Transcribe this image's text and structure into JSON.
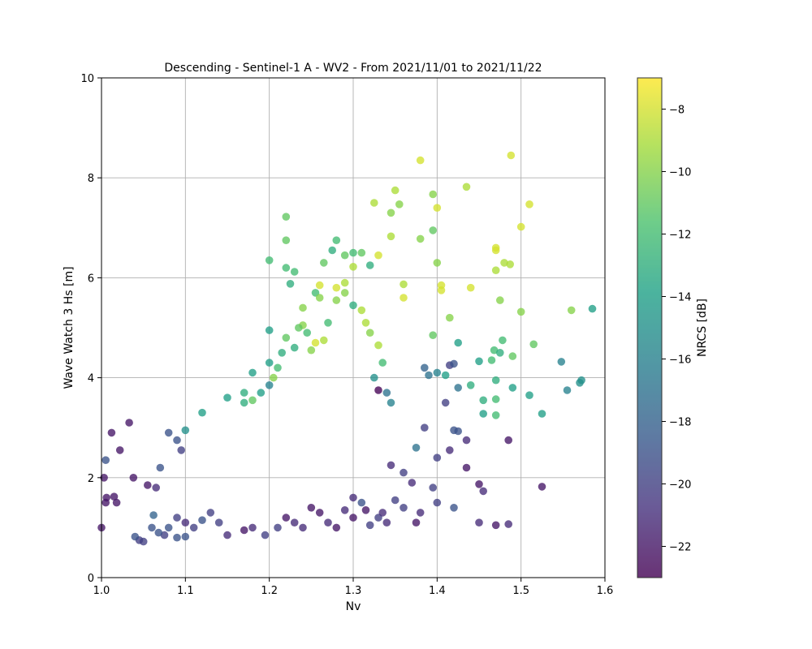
{
  "chart_data": {
    "type": "scatter",
    "title": "Descending - Sentinel-1 A - WV2 - From 2021/11/01 to 2021/11/22",
    "xlabel": "Nv",
    "ylabel": "Wave Watch 3 Hs [m]",
    "xlim": [
      1.0,
      1.6
    ],
    "ylim": [
      0,
      10
    ],
    "xticks": [
      "1.0",
      "1.1",
      "1.2",
      "1.3",
      "1.4",
      "1.5",
      "1.6"
    ],
    "yticks": [
      "0",
      "2",
      "4",
      "6",
      "8",
      "10"
    ],
    "grid": true,
    "colorbar": {
      "label": "NRCS [dB]",
      "range": [
        -23,
        -7
      ],
      "ticks": [
        "−22",
        "−20",
        "−18",
        "−16",
        "−14",
        "−12",
        "−10",
        "−8"
      ],
      "colormap": "viridis"
    },
    "points": [
      [
        1.0,
        1.0,
        -22
      ],
      [
        1.005,
        2.35,
        -19
      ],
      [
        1.003,
        2.0,
        -22
      ],
      [
        1.006,
        1.6,
        -22
      ],
      [
        1.005,
        1.5,
        -22
      ],
      [
        1.012,
        2.9,
        -22
      ],
      [
        1.015,
        1.62,
        -22
      ],
      [
        1.018,
        1.5,
        -22
      ],
      [
        1.022,
        2.55,
        -22
      ],
      [
        1.033,
        3.1,
        -22
      ],
      [
        1.038,
        2.0,
        -22
      ],
      [
        1.055,
        1.85,
        -22
      ],
      [
        1.065,
        1.8,
        -21
      ],
      [
        1.07,
        2.2,
        -19
      ],
      [
        1.08,
        2.9,
        -19
      ],
      [
        1.09,
        2.75,
        -19
      ],
      [
        1.095,
        2.55,
        -20
      ],
      [
        1.1,
        2.95,
        -15
      ],
      [
        1.09,
        0.8,
        -19
      ],
      [
        1.1,
        0.82,
        -19
      ],
      [
        1.045,
        0.75,
        -20
      ],
      [
        1.05,
        0.72,
        -20
      ],
      [
        1.04,
        0.82,
        -19
      ],
      [
        1.06,
        1.0,
        -19
      ],
      [
        1.062,
        1.25,
        -18
      ],
      [
        1.12,
        3.3,
        -14
      ],
      [
        1.15,
        3.6,
        -14
      ],
      [
        1.17,
        3.7,
        -13
      ],
      [
        1.18,
        4.1,
        -14
      ],
      [
        1.2,
        4.3,
        -14
      ],
      [
        1.2,
        4.95,
        -14
      ],
      [
        1.2,
        6.35,
        -12
      ],
      [
        1.22,
        7.22,
        -11
      ],
      [
        1.22,
        6.75,
        -11
      ],
      [
        1.22,
        6.2,
        -12
      ],
      [
        1.23,
        6.12,
        -12
      ],
      [
        1.225,
        5.88,
        -13
      ],
      [
        1.24,
        5.4,
        -10
      ],
      [
        1.255,
        5.7,
        -12
      ],
      [
        1.26,
        5.6,
        -10
      ],
      [
        1.265,
        6.3,
        -11
      ],
      [
        1.275,
        6.55,
        -13
      ],
      [
        1.28,
        6.75,
        -12
      ],
      [
        1.29,
        6.45,
        -11
      ],
      [
        1.3,
        6.5,
        -12
      ],
      [
        1.31,
        6.5,
        -11
      ],
      [
        1.32,
        6.25,
        -13
      ],
      [
        1.325,
        7.5,
        -9
      ],
      [
        1.33,
        6.45,
        -8
      ],
      [
        1.35,
        7.75,
        -9
      ],
      [
        1.345,
        7.3,
        -10
      ],
      [
        1.355,
        7.47,
        -10
      ],
      [
        1.38,
        8.35,
        -8
      ],
      [
        1.395,
        7.67,
        -10
      ],
      [
        1.4,
        7.4,
        -8
      ],
      [
        1.38,
        6.78,
        -10
      ],
      [
        1.395,
        6.95,
        -11
      ],
      [
        1.345,
        6.83,
        -9
      ],
      [
        1.3,
        6.22,
        -9
      ],
      [
        1.29,
        5.9,
        -9
      ],
      [
        1.28,
        5.8,
        -8
      ],
      [
        1.26,
        5.85,
        -8
      ],
      [
        1.36,
        5.87,
        -9
      ],
      [
        1.36,
        5.6,
        -8
      ],
      [
        1.4,
        6.3,
        -10
      ],
      [
        1.405,
        5.85,
        -8
      ],
      [
        1.405,
        5.75,
        -8
      ],
      [
        1.44,
        5.8,
        -8
      ],
      [
        1.435,
        7.82,
        -9
      ],
      [
        1.47,
        6.6,
        -8
      ],
      [
        1.47,
        6.55,
        -8
      ],
      [
        1.47,
        6.15,
        -9
      ],
      [
        1.48,
        6.3,
        -9
      ],
      [
        1.487,
        6.27,
        -9
      ],
      [
        1.475,
        5.55,
        -10
      ],
      [
        1.488,
        8.45,
        -8
      ],
      [
        1.5,
        7.02,
        -8
      ],
      [
        1.51,
        7.47,
        -8
      ],
      [
        1.5,
        5.32,
        -10
      ],
      [
        1.515,
        4.67,
        -11
      ],
      [
        1.49,
        4.43,
        -11
      ],
      [
        1.478,
        4.75,
        -12
      ],
      [
        1.468,
        4.55,
        -12
      ],
      [
        1.475,
        4.5,
        -13
      ],
      [
        1.465,
        4.35,
        -12
      ],
      [
        1.45,
        4.33,
        -14
      ],
      [
        1.47,
        3.95,
        -13
      ],
      [
        1.455,
        3.55,
        -13
      ],
      [
        1.47,
        3.57,
        -12
      ],
      [
        1.47,
        3.25,
        -12
      ],
      [
        1.455,
        3.28,
        -14
      ],
      [
        1.49,
        3.8,
        -14
      ],
      [
        1.51,
        3.65,
        -14
      ],
      [
        1.525,
        3.28,
        -14
      ],
      [
        1.548,
        4.32,
        -16
      ],
      [
        1.555,
        3.75,
        -16
      ],
      [
        1.56,
        5.35,
        -10
      ],
      [
        1.57,
        3.9,
        -15
      ],
      [
        1.572,
        3.95,
        -15
      ],
      [
        1.585,
        5.38,
        -14
      ],
      [
        1.525,
        1.82,
        -22
      ],
      [
        1.485,
        2.75,
        -22
      ],
      [
        1.485,
        1.07,
        -21
      ],
      [
        1.47,
        1.05,
        -22
      ],
      [
        1.45,
        1.1,
        -21
      ],
      [
        1.455,
        1.73,
        -21
      ],
      [
        1.45,
        1.87,
        -22
      ],
      [
        1.435,
        2.2,
        -22
      ],
      [
        1.435,
        2.75,
        -21
      ],
      [
        1.44,
        3.85,
        -13
      ],
      [
        1.425,
        3.8,
        -17
      ],
      [
        1.425,
        2.93,
        -19
      ],
      [
        1.42,
        2.95,
        -19
      ],
      [
        1.415,
        2.55,
        -21
      ],
      [
        1.42,
        1.4,
        -19
      ],
      [
        1.4,
        1.5,
        -20
      ],
      [
        1.395,
        1.8,
        -20
      ],
      [
        1.4,
        2.4,
        -20
      ],
      [
        1.395,
        4.85,
        -11
      ],
      [
        1.39,
        4.05,
        -17
      ],
      [
        1.385,
        4.2,
        -18
      ],
      [
        1.4,
        4.1,
        -16
      ],
      [
        1.41,
        4.05,
        -14
      ],
      [
        1.415,
        4.25,
        -20
      ],
      [
        1.42,
        4.28,
        -19
      ],
      [
        1.425,
        4.7,
        -14
      ],
      [
        1.415,
        5.2,
        -10
      ],
      [
        1.41,
        3.5,
        -20
      ],
      [
        1.385,
        3.0,
        -20
      ],
      [
        1.375,
        2.6,
        -17
      ],
      [
        1.38,
        1.3,
        -21
      ],
      [
        1.375,
        1.1,
        -22
      ],
      [
        1.37,
        1.9,
        -21
      ],
      [
        1.36,
        2.1,
        -20
      ],
      [
        1.35,
        1.55,
        -20
      ],
      [
        1.34,
        1.1,
        -21
      ],
      [
        1.33,
        1.2,
        -20
      ],
      [
        1.32,
        1.05,
        -20
      ],
      [
        1.315,
        1.35,
        -22
      ],
      [
        1.31,
        1.5,
        -19
      ],
      [
        1.3,
        1.2,
        -22
      ],
      [
        1.29,
        1.35,
        -21
      ],
      [
        1.28,
        1.0,
        -22
      ],
      [
        1.27,
        1.1,
        -21
      ],
      [
        1.26,
        1.3,
        -22
      ],
      [
        1.25,
        1.4,
        -22
      ],
      [
        1.24,
        1.0,
        -21
      ],
      [
        1.23,
        1.1,
        -21
      ],
      [
        1.22,
        1.2,
        -22
      ],
      [
        1.21,
        1.0,
        -20
      ],
      [
        1.195,
        0.85,
        -20
      ],
      [
        1.18,
        1.0,
        -21
      ],
      [
        1.17,
        0.95,
        -22
      ],
      [
        1.15,
        0.85,
        -21
      ],
      [
        1.14,
        1.1,
        -20
      ],
      [
        1.13,
        1.3,
        -20
      ],
      [
        1.12,
        1.15,
        -19
      ],
      [
        1.11,
        1.0,
        -20
      ],
      [
        1.1,
        1.1,
        -21
      ],
      [
        1.09,
        1.2,
        -20
      ],
      [
        1.08,
        1.0,
        -19
      ],
      [
        1.075,
        0.85,
        -20
      ],
      [
        1.068,
        0.9,
        -19
      ],
      [
        1.3,
        1.6,
        -21
      ],
      [
        1.335,
        1.3,
        -21
      ],
      [
        1.345,
        2.25,
        -21
      ],
      [
        1.36,
        1.4,
        -20
      ],
      [
        1.345,
        3.5,
        -16
      ],
      [
        1.34,
        3.7,
        -17
      ],
      [
        1.33,
        3.75,
        -23
      ],
      [
        1.325,
        4.0,
        -15
      ],
      [
        1.335,
        4.3,
        -12
      ],
      [
        1.33,
        4.65,
        -9
      ],
      [
        1.32,
        4.9,
        -10
      ],
      [
        1.315,
        5.1,
        -9
      ],
      [
        1.31,
        5.35,
        -9
      ],
      [
        1.3,
        5.45,
        -13
      ],
      [
        1.29,
        5.7,
        -10
      ],
      [
        1.28,
        5.55,
        -10
      ],
      [
        1.27,
        5.1,
        -12
      ],
      [
        1.265,
        4.75,
        -9
      ],
      [
        1.255,
        4.7,
        -8
      ],
      [
        1.25,
        4.55,
        -10
      ],
      [
        1.245,
        4.9,
        -12
      ],
      [
        1.24,
        5.05,
        -10
      ],
      [
        1.235,
        5.0,
        -11
      ],
      [
        1.23,
        4.6,
        -13
      ],
      [
        1.22,
        4.8,
        -11
      ],
      [
        1.215,
        4.5,
        -13
      ],
      [
        1.21,
        4.2,
        -12
      ],
      [
        1.205,
        4.0,
        -10
      ],
      [
        1.2,
        3.85,
        -16
      ],
      [
        1.19,
        3.7,
        -14
      ],
      [
        1.18,
        3.55,
        -11
      ],
      [
        1.17,
        3.5,
        -13
      ]
    ]
  }
}
